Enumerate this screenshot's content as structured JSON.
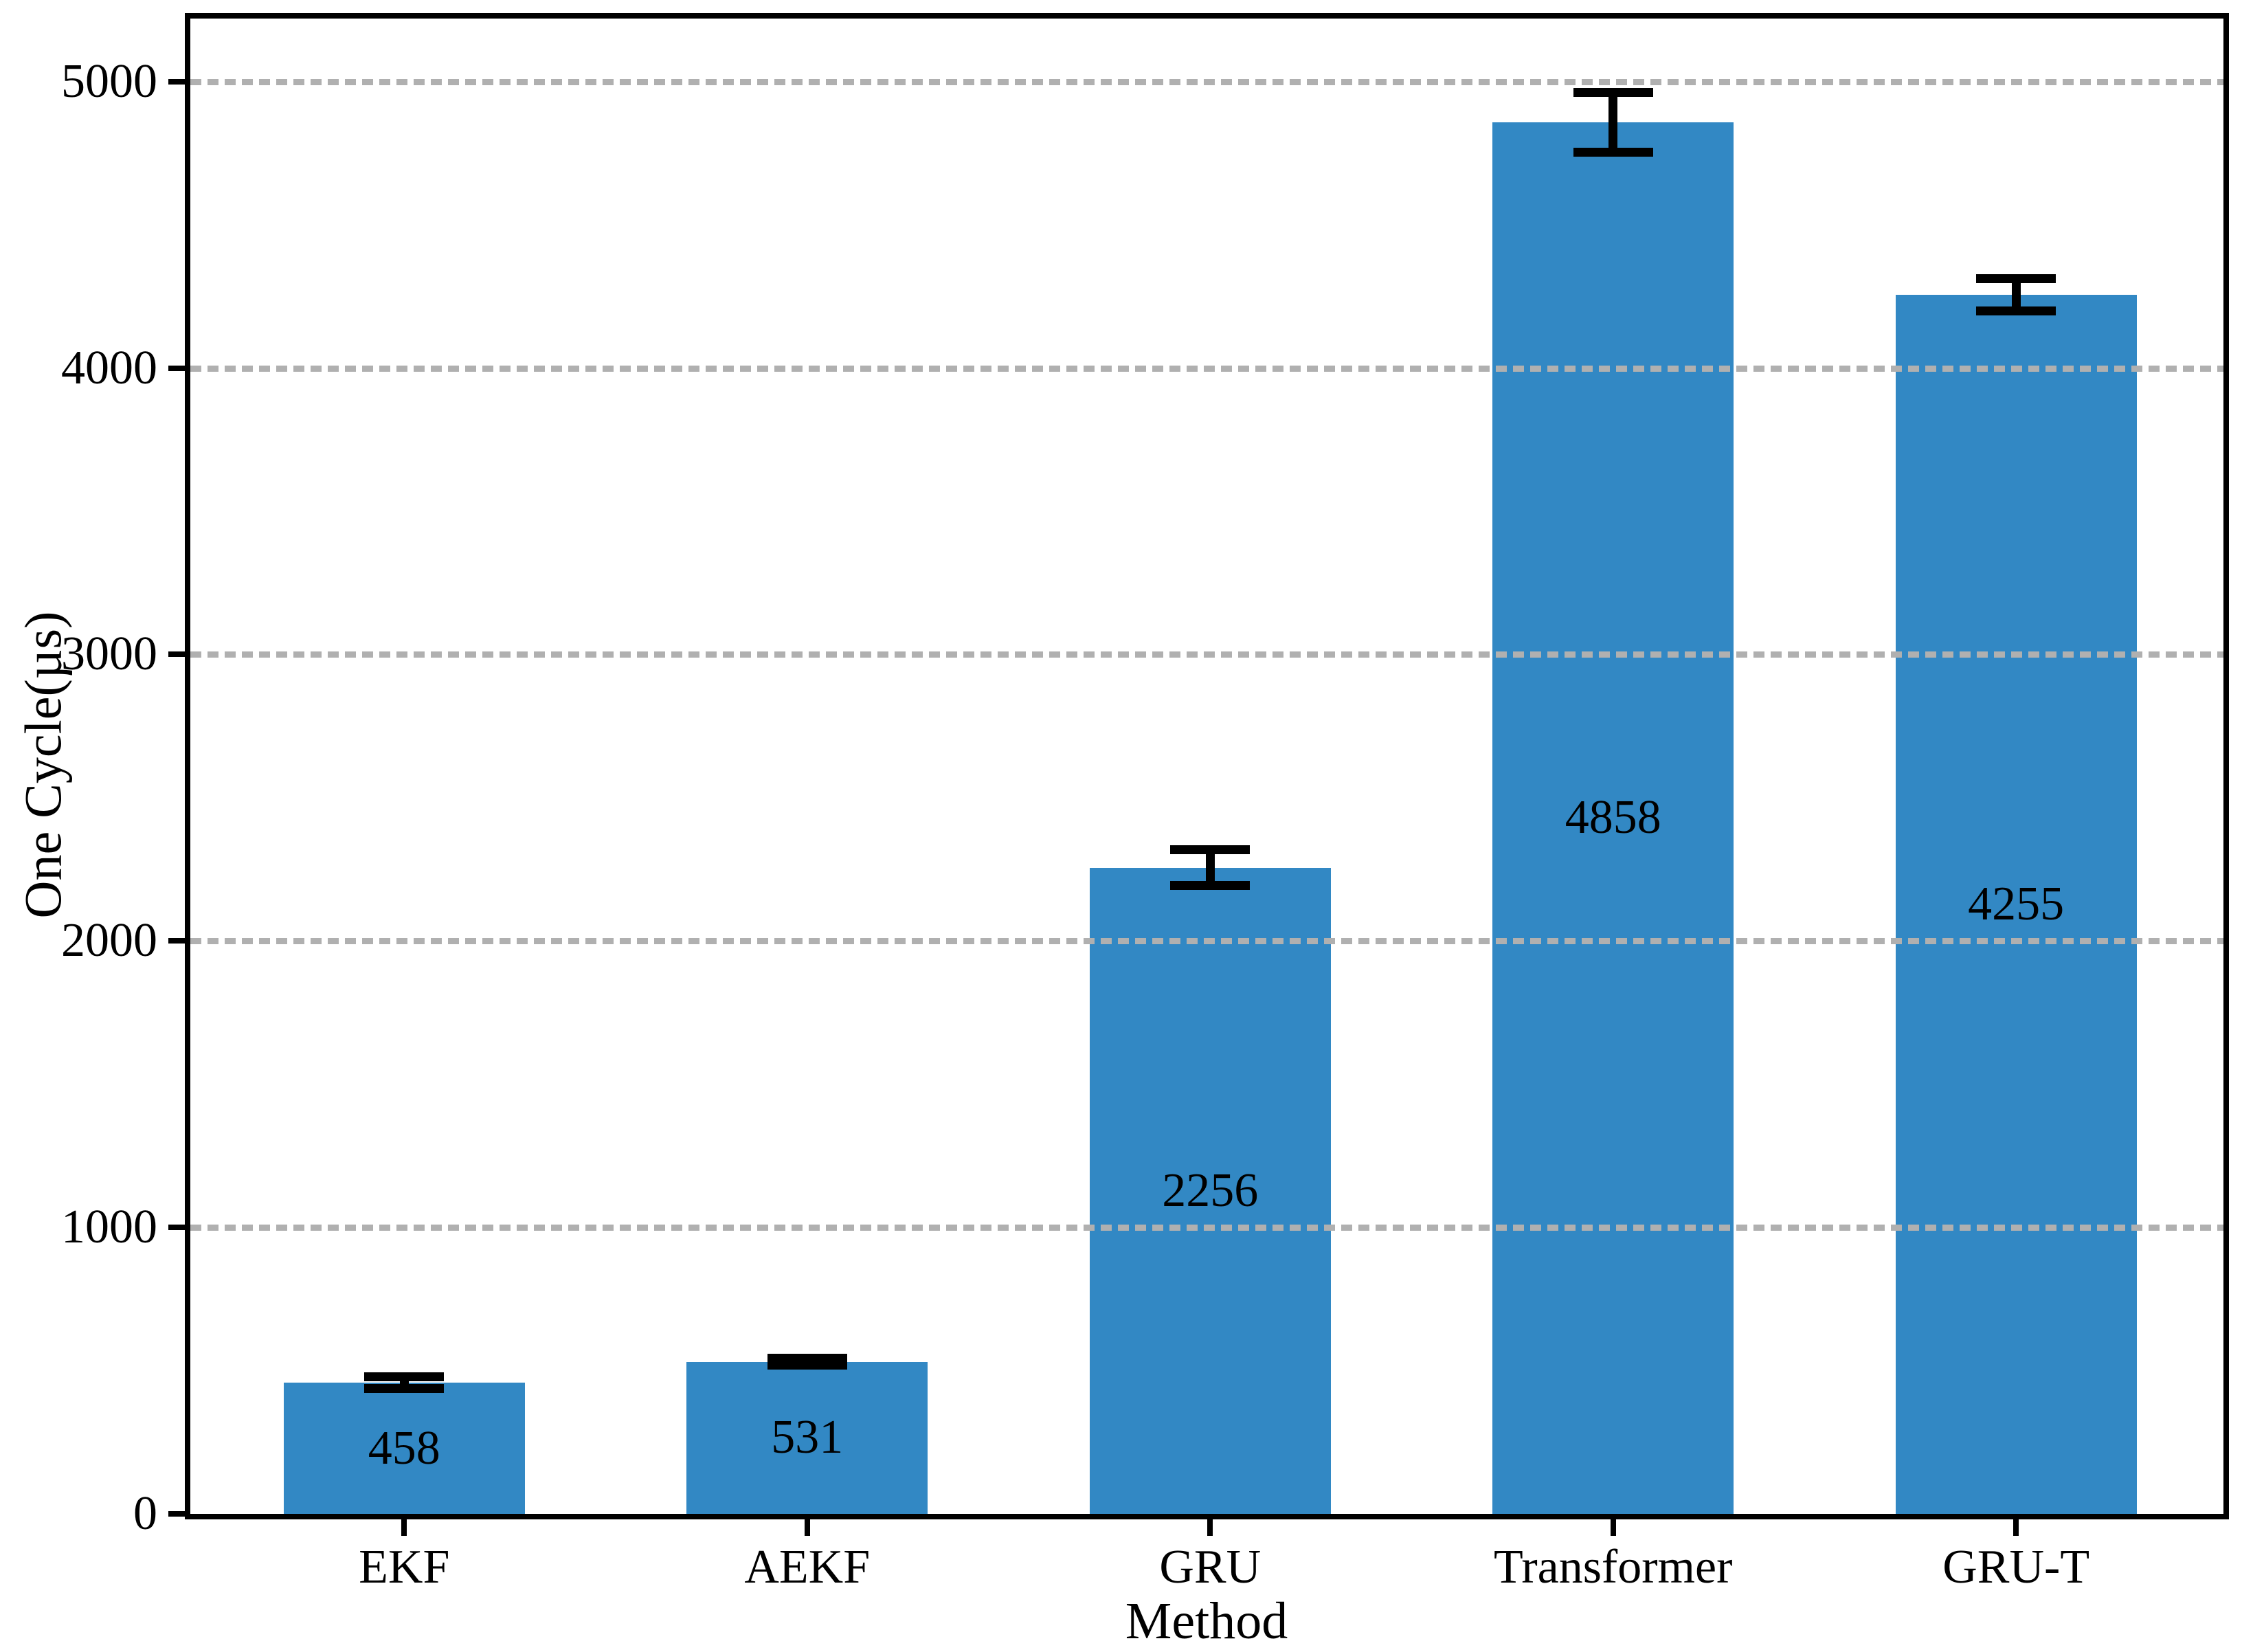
{
  "figure": {
    "background_color": "#ffffff",
    "bar_color": "#3288c4",
    "grid_color": "#b0b0b0",
    "axis_color": "#000000",
    "error_bar_color": "#000000"
  },
  "chart_data": {
    "type": "bar",
    "title": "",
    "xlabel": "Method",
    "ylabel": "One Cycle(µs)",
    "categories": [
      "EKF",
      "AEKF",
      "GRU",
      "Transformer",
      "GRU-T"
    ],
    "values": [
      458,
      531,
      2256,
      4858,
      4255
    ],
    "errors": [
      20,
      12,
      62,
      105,
      56
    ],
    "bar_labels": [
      "458",
      "531",
      "2256",
      "4858",
      "4255"
    ],
    "yticks": [
      {
        "value": 0,
        "label": "0"
      },
      {
        "value": 1000,
        "label": "1000"
      },
      {
        "value": 2000,
        "label": "2000"
      },
      {
        "value": 3000,
        "label": "3000"
      },
      {
        "value": 4000,
        "label": "4000"
      },
      {
        "value": 5000,
        "label": "5000"
      }
    ],
    "ylim": [
      0,
      5220
    ],
    "grid": "horizontal dashed, drawn above bars",
    "legend": null
  }
}
